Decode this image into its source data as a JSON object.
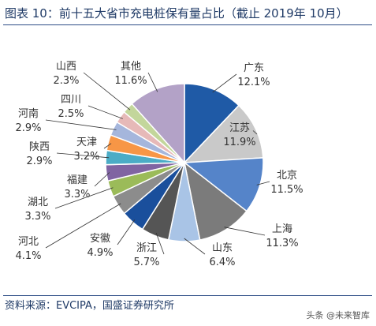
{
  "title": "图表 10：前十五大省市充电桩保有量占比（截止 2019年 10月）",
  "source": "资料来源：EVCIPA，国盛证券研究所",
  "watermark": "头条 @未来智库",
  "chart_data": {
    "type": "pie",
    "title": "图表 10：前十五大省市充电桩保有量占比（截止 2019年 10月）",
    "legend": "none",
    "slices": [
      {
        "label": "广东",
        "value": 12.1,
        "display": "12.1%",
        "color": "#1f5aa6"
      },
      {
        "label": "江苏",
        "value": 11.9,
        "display": "11.9%",
        "color": "#c9c9c9"
      },
      {
        "label": "北京",
        "value": 11.5,
        "display": "11.5%",
        "color": "#5584c9"
      },
      {
        "label": "上海",
        "value": 11.3,
        "display": "11.3%",
        "color": "#7b7b7b"
      },
      {
        "label": "山东",
        "value": 6.4,
        "display": "6.4%",
        "color": "#a9c4e6"
      },
      {
        "label": "浙江",
        "value": 5.7,
        "display": "5.7%",
        "color": "#555555"
      },
      {
        "label": "安徽",
        "value": 4.9,
        "display": "4.9%",
        "color": "#1a4f9c"
      },
      {
        "label": "河北",
        "value": 4.1,
        "display": "4.1%",
        "color": "#8c8c8c"
      },
      {
        "label": "湖北",
        "value": 3.3,
        "display": "3.3%",
        "color": "#9bbb59"
      },
      {
        "label": "福建",
        "value": 3.3,
        "display": "3.3%",
        "color": "#8064a2"
      },
      {
        "label": "陕西",
        "value": 2.9,
        "display": "2.9%",
        "color": "#4bacc6"
      },
      {
        "label": "天津",
        "value": 3.2,
        "display": "3.2%",
        "color": "#f79646"
      },
      {
        "label": "河南",
        "value": 2.9,
        "display": "2.9%",
        "color": "#a5b6dc"
      },
      {
        "label": "四川",
        "value": 2.5,
        "display": "2.5%",
        "color": "#e6b9b8"
      },
      {
        "label": "山西",
        "value": 2.3,
        "display": "2.3%",
        "color": "#c3d69b"
      },
      {
        "label": "其他",
        "value": 11.6,
        "display": "11.6%",
        "color": "#b3a2c7"
      }
    ]
  }
}
